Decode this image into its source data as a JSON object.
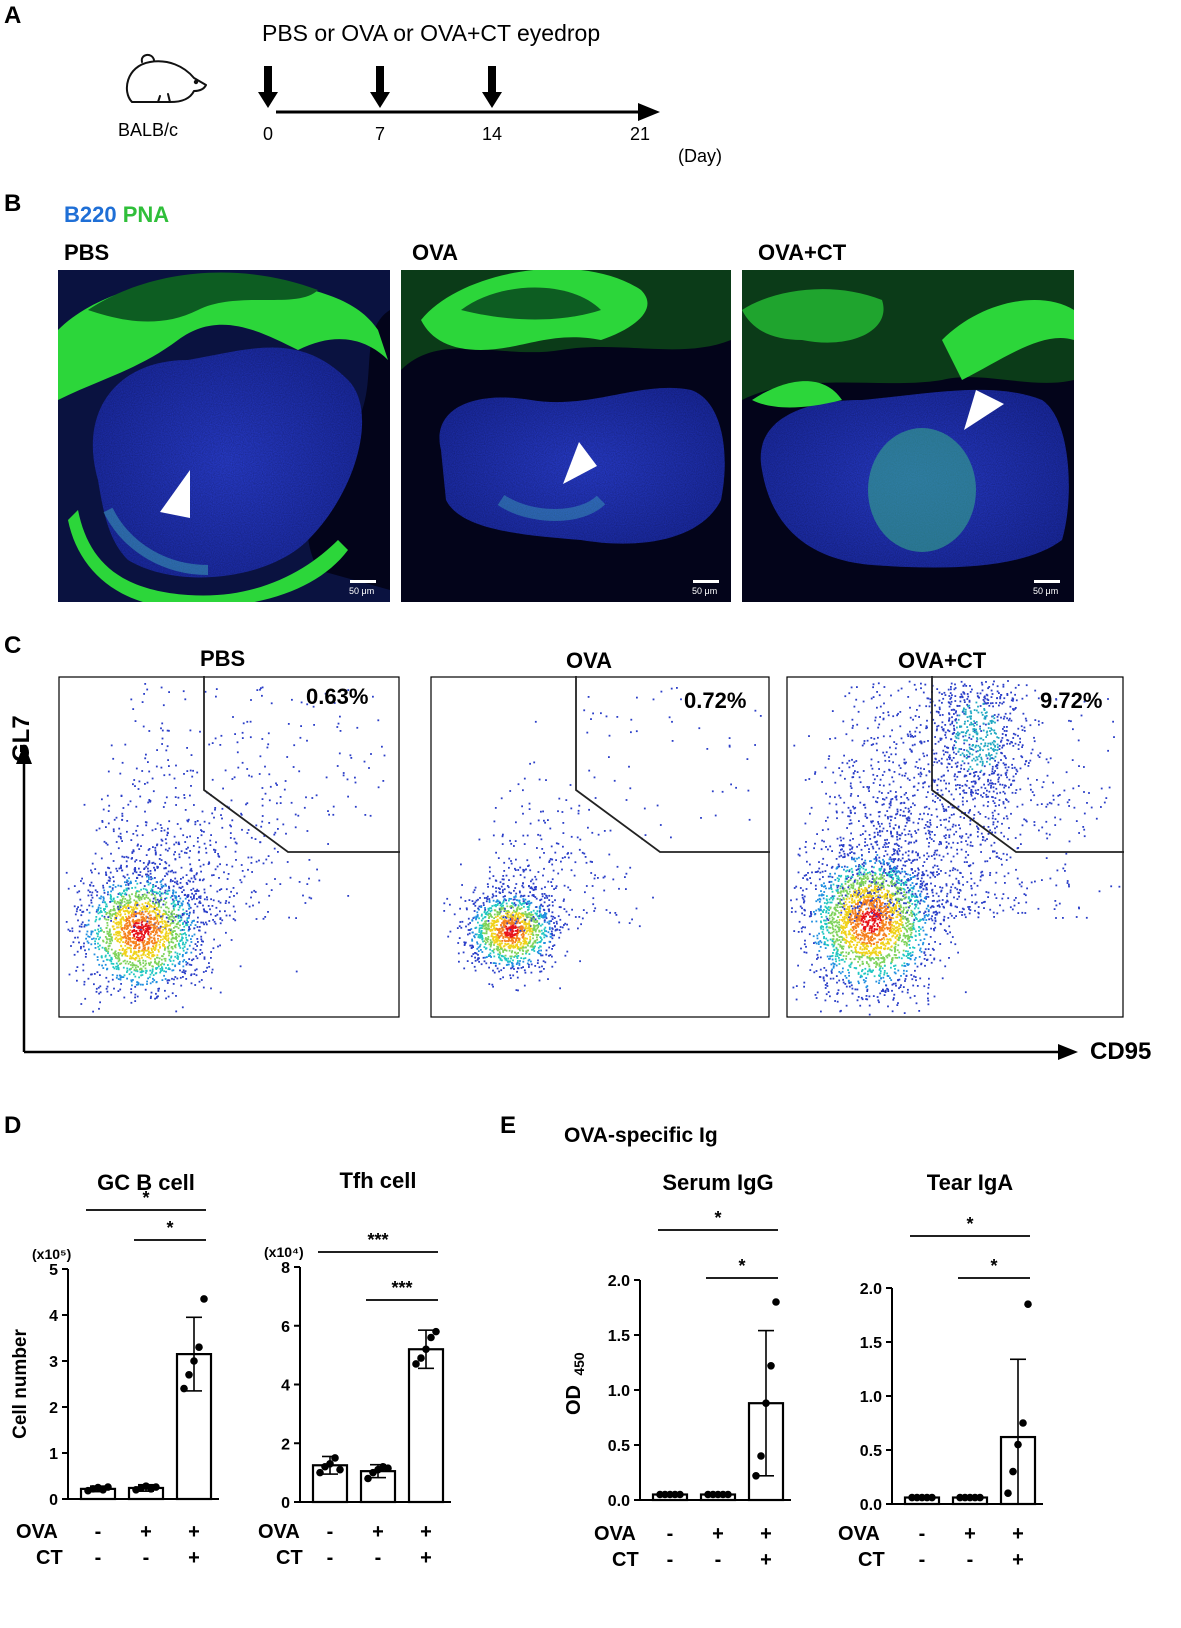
{
  "panels": {
    "a": "A",
    "b": "B",
    "c": "C",
    "d": "D",
    "e": "E"
  },
  "panel_a": {
    "title": "PBS or OVA or OVA+CT eyedrop",
    "strain": "BALB/c",
    "days": [
      "0",
      "7",
      "14",
      "21"
    ],
    "day_values": [
      0,
      7,
      14,
      21
    ],
    "dose_days": [
      0,
      7,
      14
    ],
    "unit": "(Day)",
    "icon": "mouse-icon"
  },
  "panel_b": {
    "stain_b220": "B220",
    "stain_pna": "PNA",
    "colors": {
      "b220": "#1f6fd6",
      "pna": "#2fbf3a"
    },
    "groups": [
      "PBS",
      "OVA",
      "OVA+CT"
    ],
    "scale_bar": "50 μm"
  },
  "panel_c": {
    "groups": [
      "PBS",
      "OVA",
      "OVA+CT"
    ],
    "percentages": [
      "0.63%",
      "0.72%",
      "9.72%"
    ],
    "y_axis": "GL7",
    "x_axis": "CD95"
  },
  "panel_d": {
    "ylabel": "Cell number",
    "row_labels": [
      "OVA",
      "CT"
    ],
    "chart_data": [
      {
        "type": "bar",
        "title": "GC B cell",
        "multiplier": "(x10⁵)",
        "ylim": [
          0,
          5
        ],
        "yticks": [
          "0",
          "1",
          "2",
          "3",
          "4",
          "5"
        ],
        "categories": [
          "PBS",
          "OVA",
          "OVA+CT"
        ],
        "ova": [
          "-",
          "+",
          "+"
        ],
        "ct": [
          "-",
          "-",
          "+"
        ],
        "values": [
          0.22,
          0.24,
          3.15
        ],
        "errors": [
          0.06,
          0.07,
          0.8
        ],
        "points": [
          [
            0.18,
            0.22,
            0.25,
            0.2,
            0.26
          ],
          [
            0.2,
            0.24,
            0.28,
            0.22,
            0.26
          ],
          [
            2.4,
            2.7,
            3.0,
            3.3,
            4.35
          ]
        ],
        "significance": [
          {
            "from": 0,
            "to": 2,
            "label": "*"
          },
          {
            "from": 1,
            "to": 2,
            "label": "*"
          }
        ]
      },
      {
        "type": "bar",
        "title": "Tfh cell",
        "multiplier": "(x10⁴)",
        "ylim": [
          0,
          8
        ],
        "yticks": [
          "0",
          "2",
          "4",
          "6",
          "8"
        ],
        "categories": [
          "PBS",
          "OVA",
          "OVA+CT"
        ],
        "ova": [
          "-",
          "+",
          "+"
        ],
        "ct": [
          "-",
          "-",
          "+"
        ],
        "values": [
          1.25,
          1.05,
          5.2
        ],
        "errors": [
          0.3,
          0.22,
          0.65
        ],
        "points": [
          [
            1.0,
            1.2,
            1.3,
            1.5,
            1.1
          ],
          [
            0.8,
            1.0,
            1.1,
            1.2,
            1.15
          ],
          [
            4.7,
            4.9,
            5.2,
            5.6,
            5.8
          ]
        ],
        "significance": [
          {
            "from": 0,
            "to": 2,
            "label": "***"
          },
          {
            "from": 1,
            "to": 2,
            "label": "***"
          }
        ]
      }
    ]
  },
  "panel_e": {
    "title": "OVA-specific Ig",
    "ylabel": "OD",
    "ylabel_sub": "450",
    "row_labels": [
      "OVA",
      "CT"
    ],
    "chart_data": [
      {
        "type": "bar",
        "title": "Serum IgG",
        "ylim": [
          0,
          2.0
        ],
        "yticks": [
          "0.0",
          "0.5",
          "1.0",
          "1.5",
          "2.0"
        ],
        "categories": [
          "PBS",
          "OVA",
          "OVA+CT"
        ],
        "ova": [
          "-",
          "+",
          "+"
        ],
        "ct": [
          "-",
          "-",
          "+"
        ],
        "values": [
          0.05,
          0.05,
          0.88
        ],
        "errors": [
          0,
          0,
          0.66
        ],
        "points": [
          [
            0.05,
            0.05,
            0.05,
            0.05,
            0.05
          ],
          [
            0.05,
            0.05,
            0.05,
            0.05,
            0.05
          ],
          [
            0.22,
            0.4,
            0.88,
            1.22,
            1.8
          ]
        ],
        "significance": [
          {
            "from": 0,
            "to": 2,
            "label": "*"
          },
          {
            "from": 1,
            "to": 2,
            "label": "*"
          }
        ]
      },
      {
        "type": "bar",
        "title": "Tear IgA",
        "ylim": [
          0,
          2.0
        ],
        "yticks": [
          "0.0",
          "0.5",
          "1.0",
          "1.5",
          "2.0"
        ],
        "categories": [
          "PBS",
          "OVA",
          "OVA+CT"
        ],
        "ova": [
          "-",
          "+",
          "+"
        ],
        "ct": [
          "-",
          "-",
          "+"
        ],
        "values": [
          0.06,
          0.06,
          0.62
        ],
        "errors": [
          0,
          0,
          0.72
        ],
        "points": [
          [
            0.06,
            0.06,
            0.06,
            0.06,
            0.06
          ],
          [
            0.06,
            0.06,
            0.06,
            0.06,
            0.06
          ],
          [
            0.1,
            0.3,
            0.55,
            0.75,
            1.85
          ]
        ],
        "significance": [
          {
            "from": 0,
            "to": 2,
            "label": "*"
          },
          {
            "from": 1,
            "to": 2,
            "label": "*"
          }
        ]
      }
    ]
  }
}
